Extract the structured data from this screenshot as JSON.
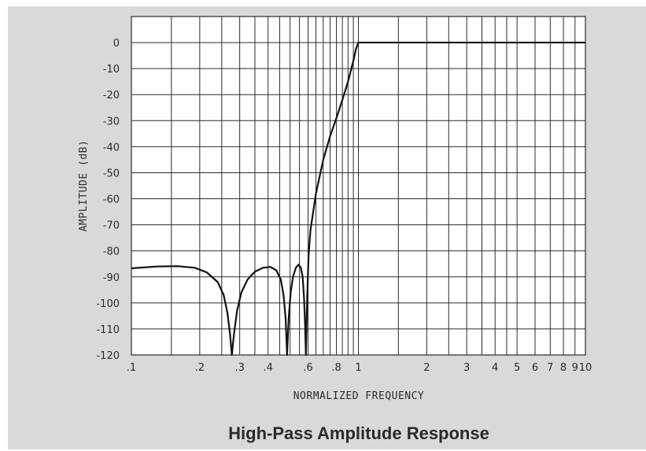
{
  "chart_data": {
    "type": "line",
    "title": "High-Pass Amplitude Response",
    "xlabel": "NORMALIZED FREQUENCY",
    "ylabel": "AMPLITUDE (dB)",
    "xscale": "log",
    "xlim": [
      0.1,
      10
    ],
    "ylim": [
      -120,
      10
    ],
    "grid": true,
    "x_tick_labels": [
      {
        "value": 0.1,
        "label": ".1"
      },
      {
        "value": 0.2,
        "label": ".2"
      },
      {
        "value": 0.3,
        "label": ".3"
      },
      {
        "value": 0.4,
        "label": ".4"
      },
      {
        "value": 0.6,
        "label": ".6"
      },
      {
        "value": 0.8,
        "label": ".8"
      },
      {
        "value": 1,
        "label": "1"
      },
      {
        "value": 2,
        "label": "2"
      },
      {
        "value": 3,
        "label": "3"
      },
      {
        "value": 4,
        "label": "4"
      },
      {
        "value": 5,
        "label": "5"
      },
      {
        "value": 6,
        "label": "6"
      },
      {
        "value": 7,
        "label": "7"
      },
      {
        "value": 8,
        "label": "8"
      },
      {
        "value": 9,
        "label": "9"
      },
      {
        "value": 10,
        "label": "10"
      }
    ],
    "y_ticks": [
      {
        "value": 0,
        "label": "0"
      },
      {
        "value": -10,
        "label": "-10"
      },
      {
        "value": -20,
        "label": "-20"
      },
      {
        "value": -30,
        "label": "-30"
      },
      {
        "value": -40,
        "label": "-40"
      },
      {
        "value": -50,
        "label": "-50"
      },
      {
        "value": -60,
        "label": "-60"
      },
      {
        "value": -70,
        "label": "-70"
      },
      {
        "value": -80,
        "label": "-80"
      },
      {
        "value": -90,
        "label": "-90"
      },
      {
        "value": -100,
        "label": "-100"
      },
      {
        "value": -110,
        "label": "-110"
      },
      {
        "value": -120,
        "label": "-120"
      }
    ],
    "x_grid": [
      0.1,
      0.15,
      0.2,
      0.25,
      0.3,
      0.35,
      0.4,
      0.45,
      0.5,
      0.55,
      0.6,
      0.65,
      0.7,
      0.75,
      0.8,
      0.85,
      0.9,
      0.95,
      1,
      1.5,
      2,
      2.5,
      3,
      3.5,
      4,
      4.5,
      5,
      6,
      7,
      8,
      9,
      10
    ],
    "y_grid": [
      0,
      -10,
      -20,
      -30,
      -40,
      -50,
      -60,
      -70,
      -80,
      -90,
      -100,
      -110,
      -120
    ],
    "series": [
      {
        "color": "#111111",
        "points": [
          [
            0.1,
            -86.7
          ],
          [
            0.13,
            -86.0
          ],
          [
            0.16,
            -85.9
          ],
          [
            0.19,
            -86.5
          ],
          [
            0.215,
            -88.3
          ],
          [
            0.24,
            -92
          ],
          [
            0.255,
            -97
          ],
          [
            0.265,
            -104
          ],
          [
            0.272,
            -112
          ],
          [
            0.277,
            -120
          ],
          [
            0.283,
            -112
          ],
          [
            0.292,
            -103
          ],
          [
            0.305,
            -96
          ],
          [
            0.325,
            -91
          ],
          [
            0.35,
            -88
          ],
          [
            0.38,
            -86.5
          ],
          [
            0.41,
            -86.2
          ],
          [
            0.435,
            -87.5
          ],
          [
            0.455,
            -91
          ],
          [
            0.468,
            -97
          ],
          [
            0.478,
            -106
          ],
          [
            0.485,
            -120
          ],
          [
            0.493,
            -106
          ],
          [
            0.503,
            -96
          ],
          [
            0.515,
            -90
          ],
          [
            0.53,
            -86.5
          ],
          [
            0.545,
            -85.3
          ],
          [
            0.558,
            -86.5
          ],
          [
            0.568,
            -90
          ],
          [
            0.576,
            -98
          ],
          [
            0.582,
            -108
          ],
          [
            0.587,
            -120
          ],
          [
            0.594,
            -100
          ],
          [
            0.603,
            -82
          ],
          [
            0.615,
            -72
          ],
          [
            0.65,
            -58
          ],
          [
            0.7,
            -45
          ],
          [
            0.75,
            -36
          ],
          [
            0.8,
            -29
          ],
          [
            0.85,
            -22
          ],
          [
            0.9,
            -15
          ],
          [
            0.95,
            -7
          ],
          [
            0.975,
            -2.5
          ],
          [
            1.0,
            0
          ],
          [
            1.5,
            0
          ],
          [
            3,
            0
          ],
          [
            5,
            0
          ],
          [
            10,
            0
          ]
        ]
      }
    ]
  }
}
